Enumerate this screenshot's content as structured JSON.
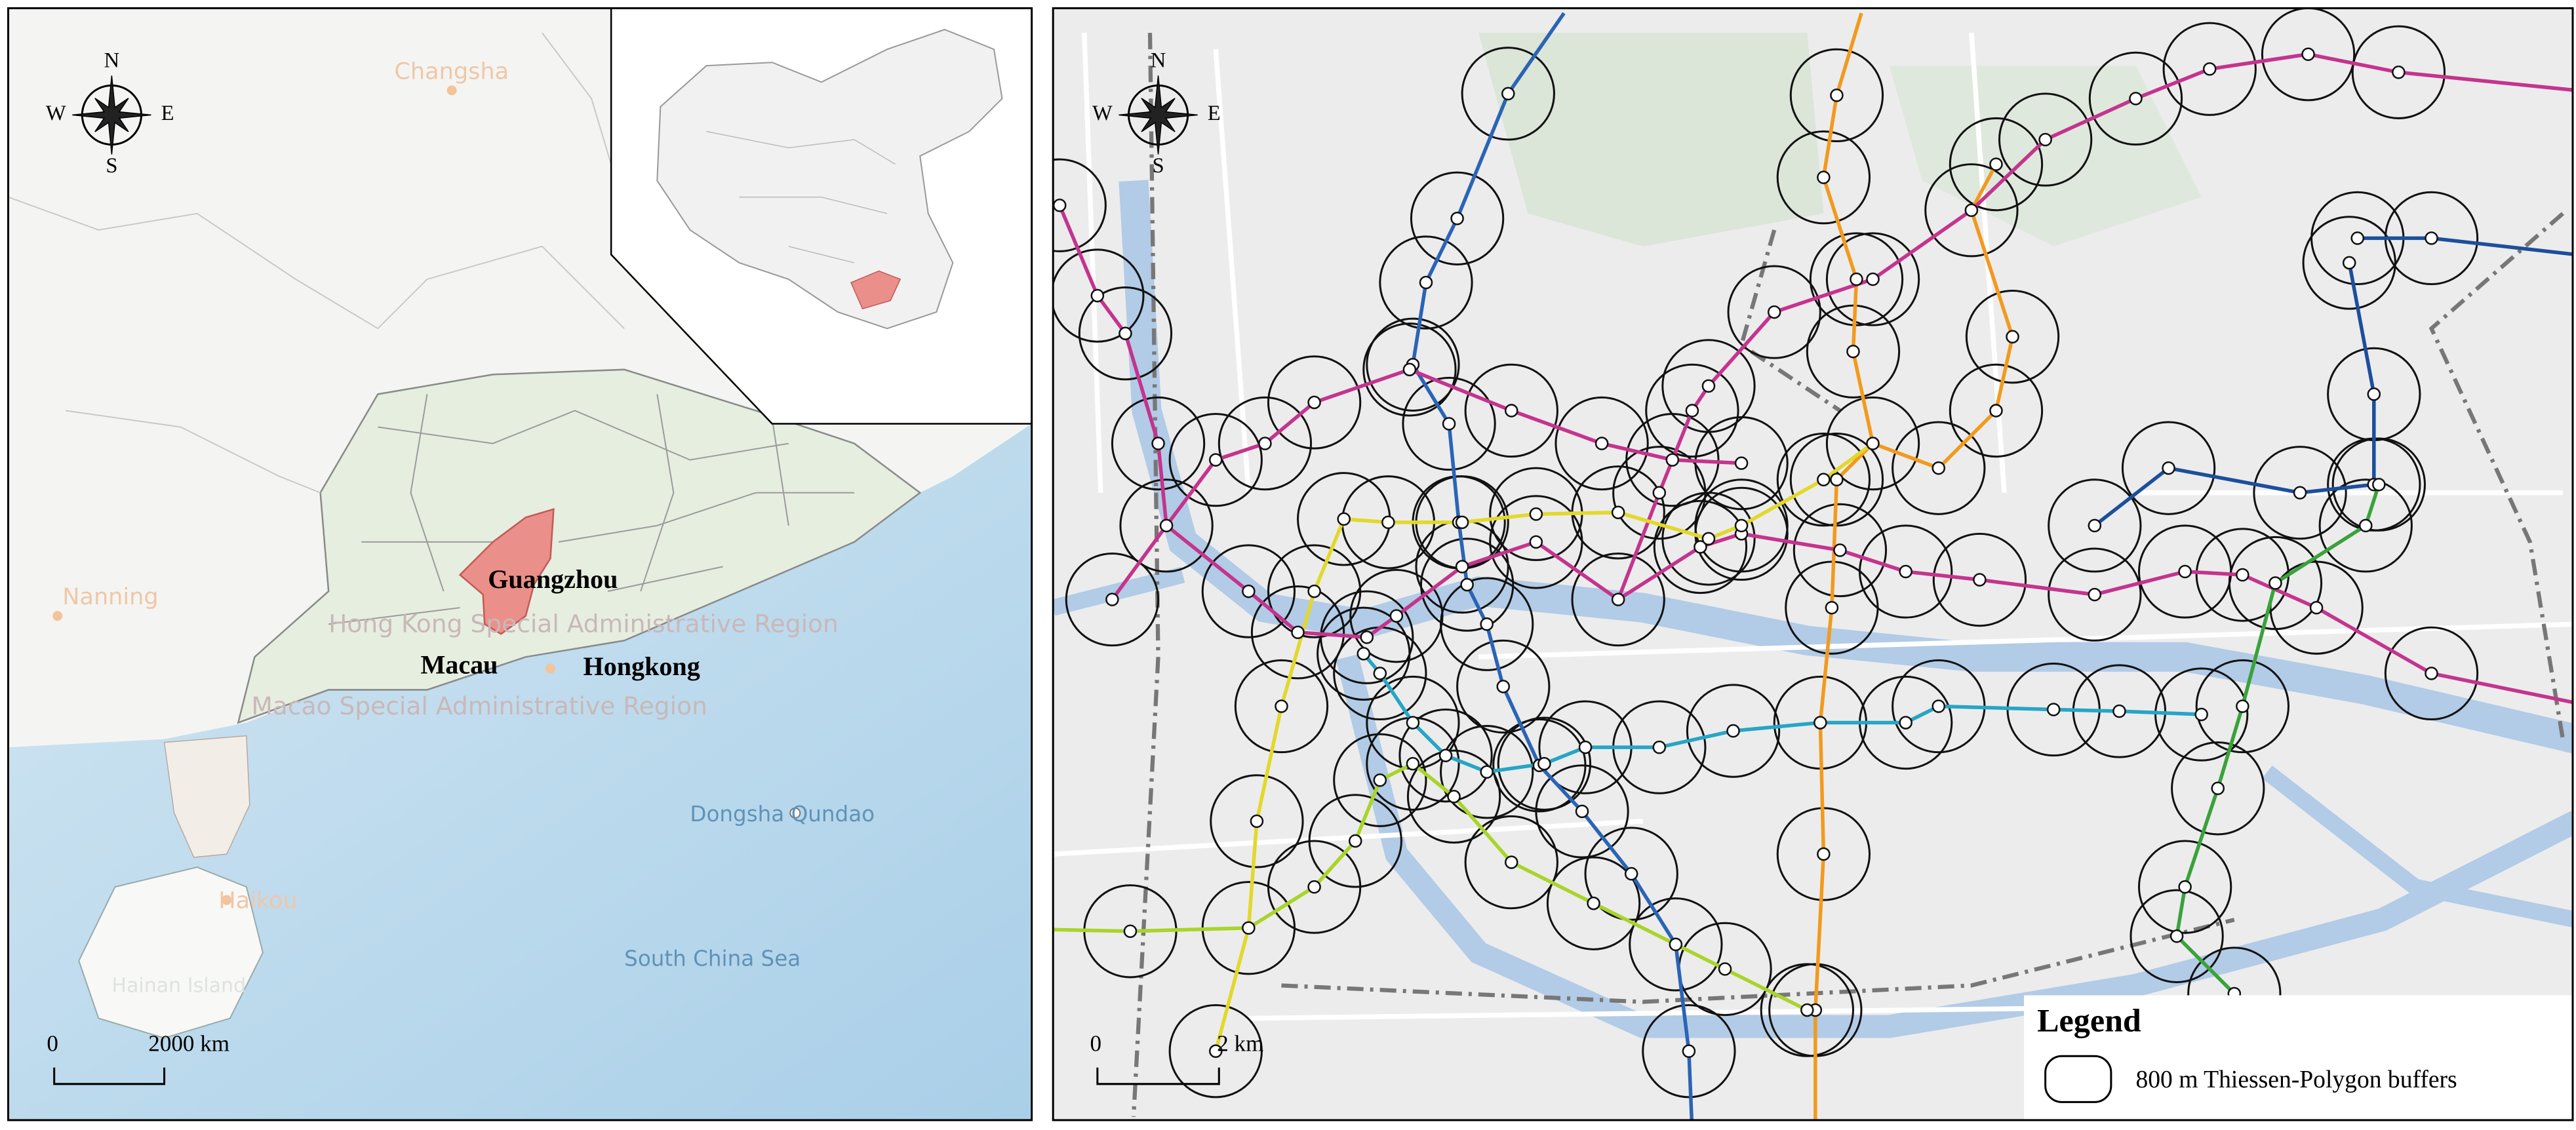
{
  "left_map": {
    "compass": {
      "north": "N",
      "south": "S",
      "west": "W",
      "east": "E"
    },
    "labels": {
      "changsha": "Changsha",
      "nanning": "Nanning",
      "guangzhou": "Guangzhou",
      "macau": "Macau",
      "hongkong": "Hongkong",
      "hk_region": "Hong Kong Special Administrative Region",
      "macao_region": "Macao Special Administrative Region",
      "haikou": "Haikou",
      "hainan": "Hainan Island",
      "dongsha": "Dongsha Qundao",
      "south_china_sea": "South China Sea"
    },
    "scale_bar": {
      "zero": "0",
      "length": "2000 km"
    }
  },
  "right_map": {
    "compass": {
      "north": "N",
      "south": "S",
      "west": "W",
      "east": "E"
    },
    "scale_bar": {
      "zero": "0",
      "length": "2 km"
    },
    "legend": {
      "title": "Legend",
      "item": "800 m Thiessen-Polygon buffers"
    }
  }
}
